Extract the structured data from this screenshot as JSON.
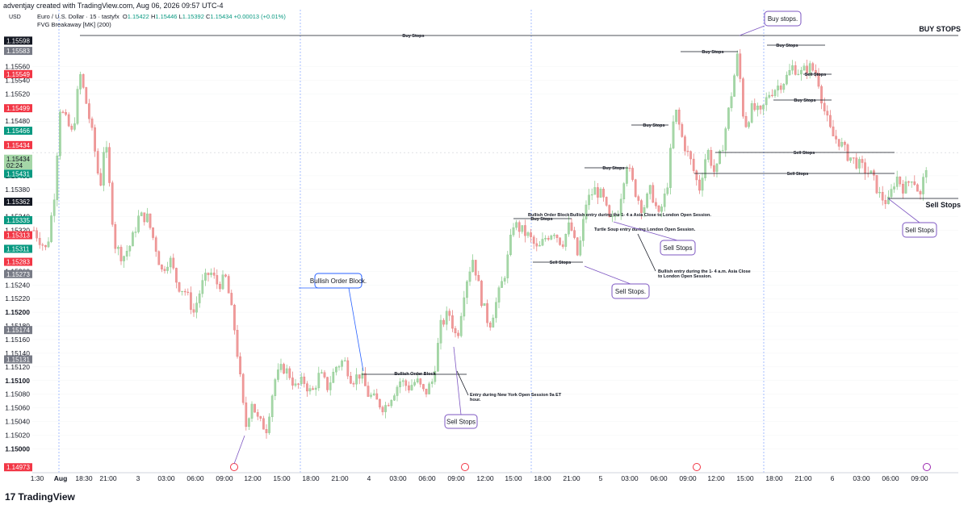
{
  "header": {
    "credit": "adventjay created with TradingView.com, Aug 06, 2026 09:57 UTC-4",
    "symbol": "Euro / U.S. Dollar · 15 · tastyfx",
    "ohlc": {
      "o_label": "O",
      "o": "1.15422",
      "h_label": "H",
      "h": "1.15446",
      "l_label": "L",
      "l": "1.15392",
      "c_label": "C",
      "c": "1.15434",
      "change": "+0.00013 (+0.01%)"
    },
    "indicator": "FVG Breakaway [MK] (200)",
    "currency": "USD"
  },
  "footer": {
    "logo_mark": "17",
    "logo_text": "TradingView"
  },
  "colors": {
    "up": "#089981",
    "down": "#f23645",
    "up_candle": "#a5d6a7",
    "down_candle": "#ef9a9a",
    "session_line": "#2962ff",
    "callout_border": "#7e57c2",
    "callout_border_blue": "#2962ff"
  },
  "chart_data": {
    "type": "candlestick",
    "symbol": "EURUSD",
    "timeframe": "15",
    "ylim": [
      1.14965,
      1.15615
    ],
    "y_ticks_regular": [
      1.1556,
      1.1554,
      1.1552,
      1.1548,
      1.1538,
      1.1536,
      1.1534,
      1.1532,
      1.1526,
      1.1524,
      1.1522,
      1.1518,
      1.1516,
      1.1514,
      1.1512,
      1.1508,
      1.1506,
      1.1504,
      1.1502
    ],
    "y_ticks_bold": [
      1.154,
      1.152,
      1.151,
      1.15
    ],
    "y_tick_labels_regular": [
      "1.15560",
      "1.15540",
      "1.15520",
      "1.15480",
      "1.15380",
      "1.15360",
      "1.15340",
      "1.15320",
      "1.15260",
      "1.15240",
      "1.15220",
      "1.15180",
      "1.15160",
      "1.15140",
      "1.15120",
      "1.15080",
      "1.15060",
      "1.15040",
      "1.15020"
    ],
    "y_tick_labels_bold": [
      "1.15400",
      "1.15200",
      "1.15100",
      "1.15000"
    ],
    "x_ticks": [
      "1:30",
      "Aug",
      "18:30",
      "21:00",
      "3",
      "03:00",
      "06:00",
      "09:00",
      "12:00",
      "15:00",
      "18:00",
      "21:00",
      "4",
      "03:00",
      "06:00",
      "09:00",
      "12:00",
      "15:00",
      "18:00",
      "21:00",
      "5",
      "03:00",
      "06:00",
      "09:00",
      "12:00",
      "15:00",
      "18:00",
      "21:00",
      "6",
      "03:00",
      "06:00",
      "09:00"
    ],
    "x_ticks_bold": [
      "Aug"
    ],
    "price_tags": [
      {
        "value": "1.15598",
        "price": 1.15598,
        "color": "#131722"
      },
      {
        "value": "1.15583",
        "price": 1.15583,
        "color": "#787b86"
      },
      {
        "value": "1.15549",
        "price": 1.15549,
        "color": "#f23645"
      },
      {
        "value": "1.15499",
        "price": 1.15499,
        "color": "#f23645"
      },
      {
        "value": "1.15466",
        "price": 1.15466,
        "color": "#089981"
      },
      {
        "value": "1.15434",
        "price": 1.15445,
        "color": "#f23645"
      },
      {
        "value": "1.15434",
        "price": 1.15425,
        "color": "#a5d6a7",
        "text_color": "#131722"
      },
      {
        "value": "02:24",
        "price": 1.15415,
        "color": "#a5d6a7",
        "text_color": "#131722"
      },
      {
        "value": "1.15431",
        "price": 1.15403,
        "color": "#089981"
      },
      {
        "value": "1.15362",
        "price": 1.15362,
        "color": "#131722"
      },
      {
        "value": "1.15335",
        "price": 1.15335,
        "color": "#089981"
      },
      {
        "value": "1.15313",
        "price": 1.15313,
        "color": "#f23645"
      },
      {
        "value": "1.15311",
        "price": 1.15293,
        "color": "#089981"
      },
      {
        "value": "1.15283",
        "price": 1.15274,
        "color": "#f23645"
      },
      {
        "value": "1.15273",
        "price": 1.15256,
        "color": "#787b86"
      },
      {
        "value": "1.15174",
        "price": 1.15174,
        "color": "#787b86"
      },
      {
        "value": "1.15131",
        "price": 1.15131,
        "color": "#787b86"
      },
      {
        "value": "1.14973",
        "price": 1.14973,
        "color": "#f23645"
      }
    ],
    "annotations": {
      "buy_stops_top": "Buy Stops",
      "buy_stops_big": "BUY STOPS",
      "sell_stops_big": "Sell Stops",
      "buy_stops_1": "Buy Stops",
      "buy_stops_2": "Buy Stops",
      "buy_stops_3": "Buy Stops",
      "buy_stops_4": "Buy Stops",
      "buy_stops_5": "Buy Stops",
      "buy_stops_6": "Buy Stops",
      "sell_stops_1": "Sell Stops",
      "sell_stops_2": "Sell Stops",
      "sell_stops_3": "Sell Stops",
      "sell_stops_4": "Sell Stops",
      "bullish_ob_small": "Bullish Order Block",
      "bullish_ob_label": "Bullish Order Block",
      "bullish_entry_asia": "Bullish entry during the 1- 4 a Asia Close to London Open Session.",
      "turtle_soup": "Turtle Soup entry during London Open Session.",
      "bullish_entry_asia_2_line1": "Bullish entry during the 1- 4 a.m. Asia Close",
      "bullish_entry_asia_2_line2": "to London Open Session.",
      "entry_ny_line1": "Entry during New York Open Session 9a ET",
      "entry_ny_line2": "hour.",
      "callout_buy_stops": "Buy stops.",
      "callout_bullish_ob": "Bullish Order Block.",
      "callout_sell_stops_1": "Sell Stops",
      "callout_sell_stops_2": "Sell Stops.",
      "callout_sell_stops_3": "Sell Stops",
      "callout_sell_stops_4": "Sell Stops"
    }
  }
}
